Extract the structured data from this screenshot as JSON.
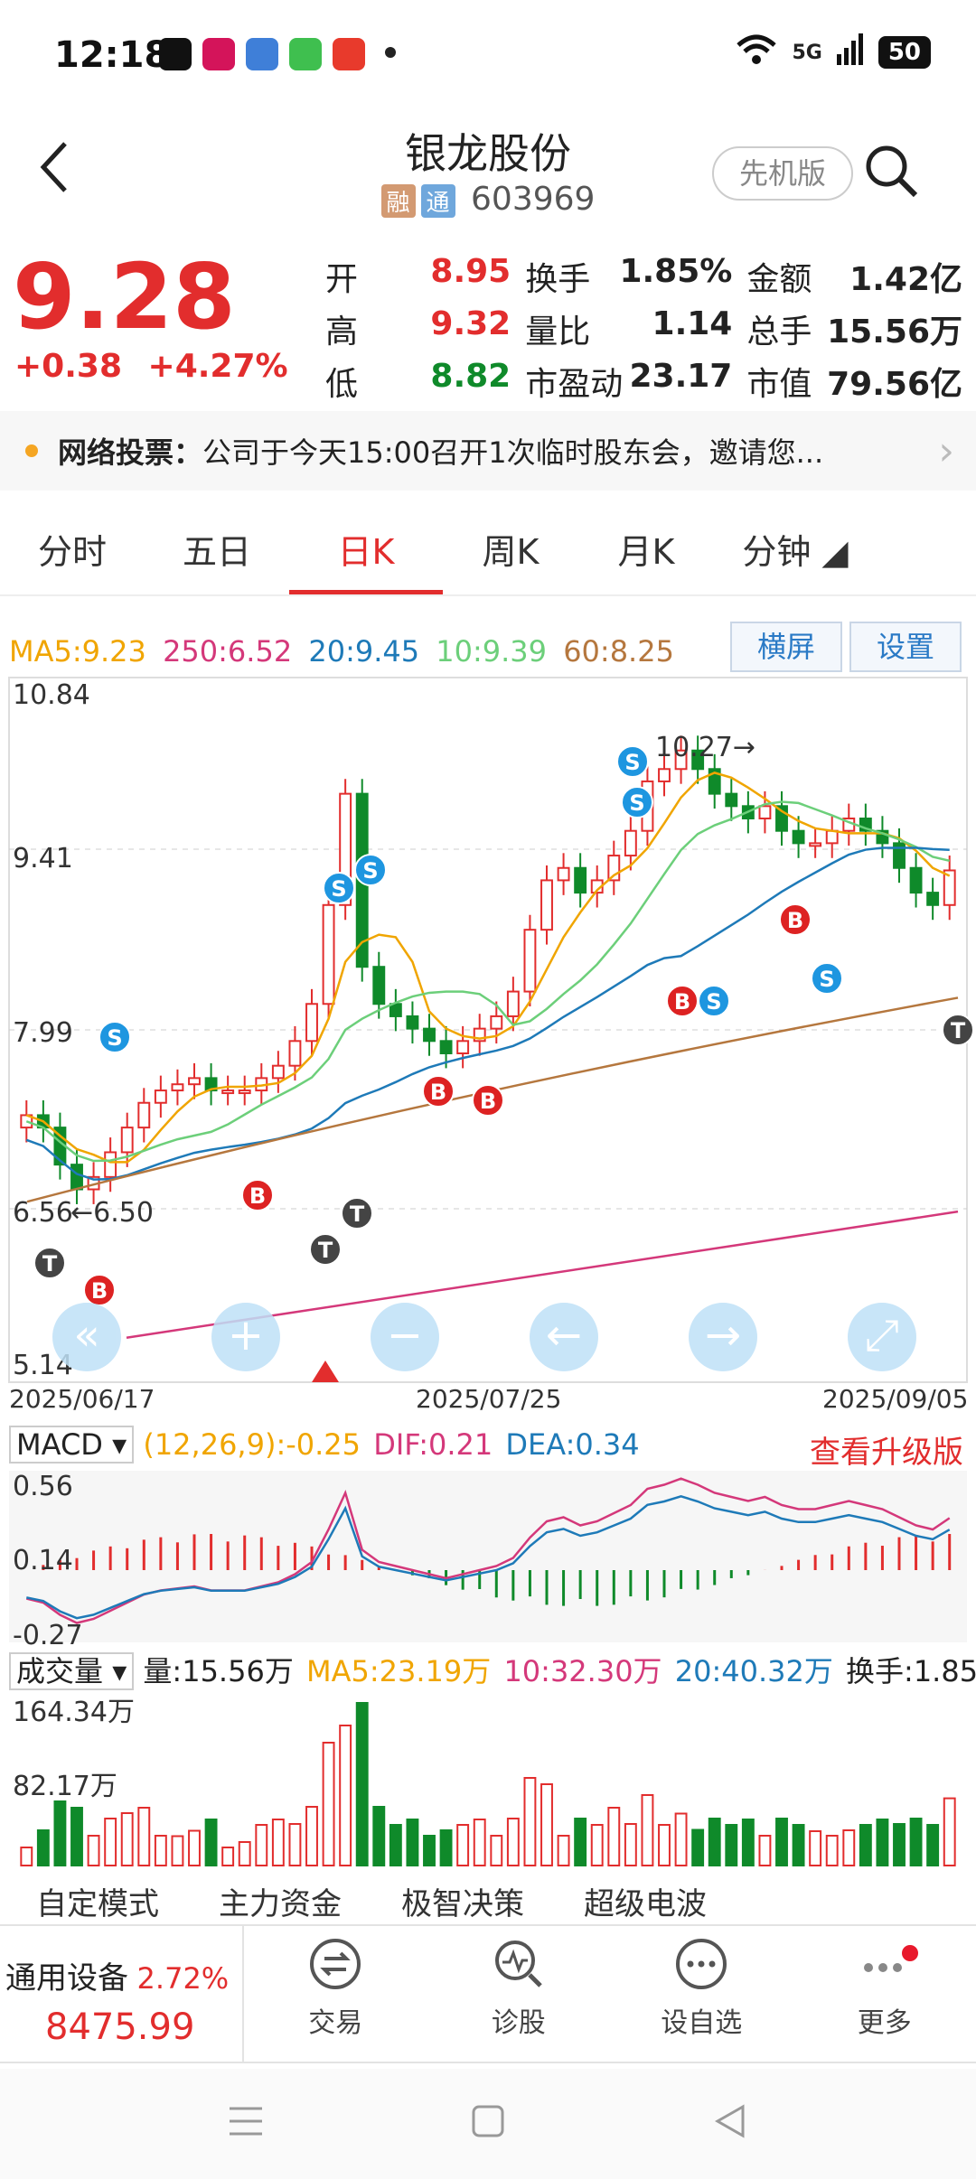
{
  "status": {
    "time": "12:18",
    "network": "5G",
    "battery": "50"
  },
  "header": {
    "title": "银龙股份",
    "tag1": "融",
    "tag2": "通",
    "code": "603969",
    "adv_label": "先机版"
  },
  "quote": {
    "price": "9.28",
    "change": "+0.38",
    "change_pct": "+4.27%",
    "rows": [
      [
        {
          "k": "开",
          "v": "8.95",
          "cls": "red"
        },
        {
          "k": "换手",
          "v": "1.85%",
          "cls": "blk"
        },
        {
          "k": "金额",
          "v": "1.42亿",
          "cls": "blk"
        }
      ],
      [
        {
          "k": "高",
          "v": "9.32",
          "cls": "red"
        },
        {
          "k": "量比",
          "v": "1.14",
          "cls": "blk"
        },
        {
          "k": "总手",
          "v": "15.56万",
          "cls": "blk"
        }
      ],
      [
        {
          "k": "低",
          "v": "8.82",
          "cls": "grn"
        },
        {
          "k": "市盈动",
          "v": "23.17",
          "cls": "blk"
        },
        {
          "k": "市值",
          "v": "79.56亿",
          "cls": "blk"
        }
      ]
    ]
  },
  "notice": {
    "label": "网络投票：",
    "text": "公司于今天15:00召开1次临时股东会，邀请您..."
  },
  "tabs": [
    "分时",
    "五日",
    "日K",
    "周K",
    "月K",
    "分钟"
  ],
  "chart_legend": {
    "ma5": "MA5:9.23",
    "ma250": "250:6.52",
    "ma20": "20:9.45",
    "ma10": "10:9.39",
    "ma60": "60:8.25"
  },
  "chart_buttons": {
    "landscape": "横屏",
    "settings": "设置"
  },
  "chart_data": {
    "type": "candlestick",
    "y_ticks": [
      "10.84",
      "9.41",
      "7.99",
      "6.56",
      "5.14"
    ],
    "ylim": [
      5.14,
      10.84
    ],
    "x_ticks": [
      "2025/06/17",
      "2025/07/25",
      "2025/09/05"
    ],
    "annotations": {
      "high": "10.27",
      "low": "6.50"
    },
    "markers": [
      "S",
      "B",
      "T"
    ]
  },
  "macd": {
    "name": "MACD",
    "params": "(12,26,9):-0.25",
    "dif": "DIF:0.21",
    "dea": "DEA:0.34",
    "upgrade": "查看升级版",
    "ticks": [
      "0.56",
      "0.14",
      "-0.27"
    ]
  },
  "volume": {
    "name": "成交量",
    "vol": "量:15.56万",
    "ma5": "MA5:23.19万",
    "ma10": "10:32.30万",
    "ma20": "20:40.32万",
    "turnover": "换手:1.85",
    "ticks": [
      "164.34万",
      "82.17万"
    ]
  },
  "bottom_tabs": [
    "自定模式",
    "主力资金",
    "极智决策",
    "超级电波"
  ],
  "index": {
    "name": "通用设备",
    "pct": "2.72%",
    "value": "8475.99"
  },
  "toolbar": [
    "交易",
    "诊股",
    "设自选",
    "更多"
  ],
  "colors": {
    "up": "#e22d2d",
    "down": "#0f8a2a",
    "ma5": "#f0a500",
    "ma10": "#6ccf7a",
    "ma20": "#1e7ab8",
    "ma60": "#b5773e",
    "ma250": "#d4387a"
  }
}
